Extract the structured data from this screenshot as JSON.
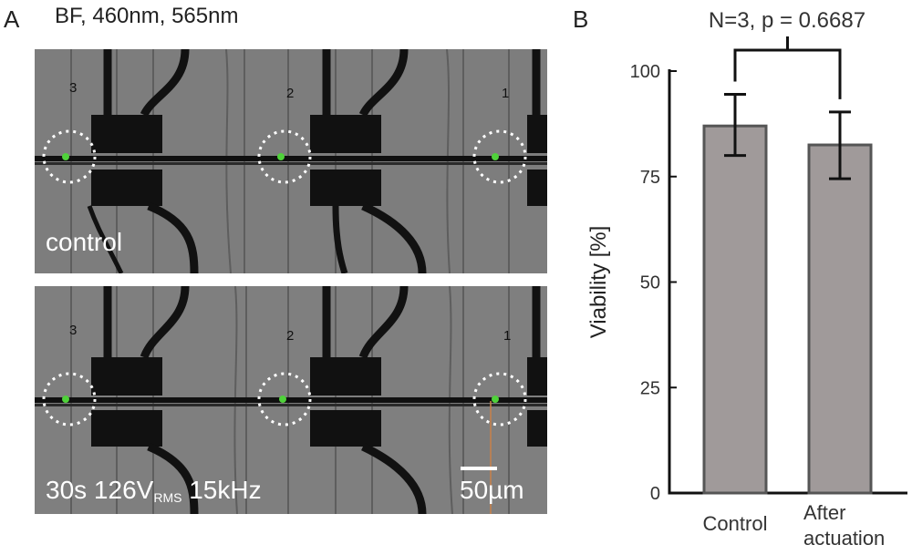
{
  "panel_a": {
    "letter": "A",
    "header": "BF, 460nm, 565nm",
    "top_image": {
      "caption": "control",
      "site_labels": [
        "3",
        "2",
        "1"
      ]
    },
    "bottom_image": {
      "caption_prefix": "30s 126V",
      "caption_sub": "RMS",
      "caption_suffix": " 15kHz",
      "site_labels": [
        "3",
        "2",
        "1"
      ],
      "scale_label": "50µm"
    }
  },
  "panel_b": {
    "letter": "B",
    "bar_color": "#a09a9a",
    "bar_edge_color": "#555555"
  },
  "chart_data": {
    "type": "bar",
    "title": "N=3, p = 0.6687",
    "categories": [
      "Control",
      "After actuation"
    ],
    "category_lines": [
      [
        "Control"
      ],
      [
        "After",
        "actuation"
      ]
    ],
    "values": [
      87,
      82.5
    ],
    "error_low": [
      80,
      74.5
    ],
    "error_high": [
      94.5,
      90.3
    ],
    "ylabel": "Viability [%]",
    "xlabel": "",
    "ylim": [
      0,
      100
    ],
    "yticks": [
      0,
      25,
      50,
      75,
      100
    ],
    "grid": false,
    "legend": "none"
  }
}
